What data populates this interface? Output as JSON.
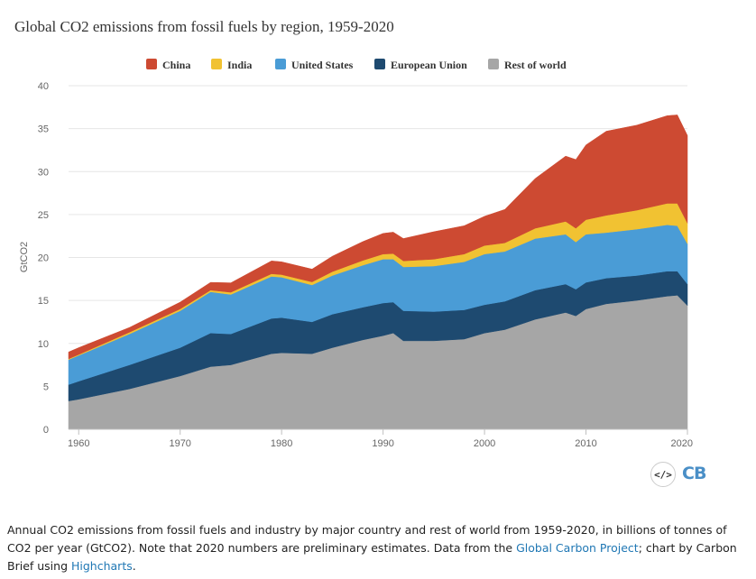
{
  "title": "Global CO2 emissions from fossil fuels by region, 1959-2020",
  "colors": {
    "china": "#cd4a32",
    "india": "#f1c232",
    "united_states": "#4a9cd6",
    "european_union": "#1e4a70",
    "rest_of_world": "#a6a6a6",
    "gridline": "#e6e6e6"
  },
  "chart_data": {
    "type": "area",
    "stacked": true,
    "title": "Global CO2 emissions from fossil fuels by region, 1959-2020",
    "xlabel": "",
    "ylabel": "GtCO2",
    "xlim": [
      1959,
      2020
    ],
    "ylim": [
      0,
      40
    ],
    "x_ticks": [
      "1960",
      "1970",
      "1980",
      "1990",
      "2000",
      "2010",
      "2020"
    ],
    "y_ticks": [
      "0",
      "5",
      "10",
      "15",
      "20",
      "25",
      "30",
      "35",
      "40"
    ],
    "grid": true,
    "legend_position": "top",
    "x": [
      1959,
      1960,
      1965,
      1970,
      1973,
      1975,
      1979,
      1980,
      1983,
      1985,
      1988,
      1990,
      1991,
      1992,
      1995,
      1998,
      2000,
      2002,
      2005,
      2008,
      2009,
      2010,
      2012,
      2015,
      2018,
      2019,
      2020
    ],
    "series": [
      {
        "name": "Rest of world",
        "values": [
          3.3,
          3.5,
          4.7,
          6.2,
          7.3,
          7.5,
          8.8,
          8.9,
          8.8,
          9.5,
          10.4,
          10.9,
          11.2,
          10.3,
          10.3,
          10.5,
          11.2,
          11.6,
          12.8,
          13.6,
          13.2,
          14.0,
          14.6,
          15.0,
          15.5,
          15.6,
          14.4
        ]
      },
      {
        "name": "European Union",
        "values": [
          1.9,
          2.1,
          2.8,
          3.3,
          3.9,
          3.6,
          4.1,
          4.1,
          3.7,
          3.9,
          3.8,
          3.8,
          3.6,
          3.5,
          3.4,
          3.4,
          3.3,
          3.3,
          3.4,
          3.3,
          3.1,
          3.1,
          3.0,
          2.9,
          2.9,
          2.8,
          2.5
        ]
      },
      {
        "name": "United States",
        "values": [
          2.9,
          3.0,
          3.6,
          4.3,
          4.8,
          4.6,
          4.9,
          4.7,
          4.3,
          4.5,
          4.9,
          5.1,
          5.0,
          5.1,
          5.3,
          5.6,
          5.9,
          5.8,
          6.0,
          5.8,
          5.5,
          5.6,
          5.3,
          5.4,
          5.4,
          5.3,
          4.7
        ]
      },
      {
        "name": "India",
        "values": [
          0.1,
          0.1,
          0.2,
          0.2,
          0.2,
          0.25,
          0.3,
          0.3,
          0.35,
          0.45,
          0.55,
          0.6,
          0.65,
          0.7,
          0.8,
          0.9,
          1.0,
          1.0,
          1.2,
          1.5,
          1.6,
          1.7,
          2.0,
          2.2,
          2.5,
          2.6,
          2.4
        ]
      },
      {
        "name": "China",
        "values": [
          0.8,
          0.8,
          0.55,
          0.8,
          0.9,
          1.1,
          1.5,
          1.5,
          1.5,
          1.8,
          2.2,
          2.4,
          2.5,
          2.6,
          3.2,
          3.3,
          3.4,
          3.9,
          5.8,
          7.6,
          8.0,
          8.7,
          9.8,
          9.9,
          10.2,
          10.3,
          10.2
        ]
      }
    ]
  },
  "caption": {
    "text_1": "Annual CO2 emissions from fossil fuels and industry by major country and rest of world from 1959-2020, in billions of tonnes of CO2 per year (GtCO2). Note that 2020 numbers are preliminary estimates. Data from the ",
    "link_1": "Global Carbon Project",
    "text_2": "; chart by Carbon Brief using ",
    "link_2": "Highcharts",
    "text_3": "."
  },
  "footer": {
    "embed_label": "</>",
    "brand_label": "CB"
  }
}
